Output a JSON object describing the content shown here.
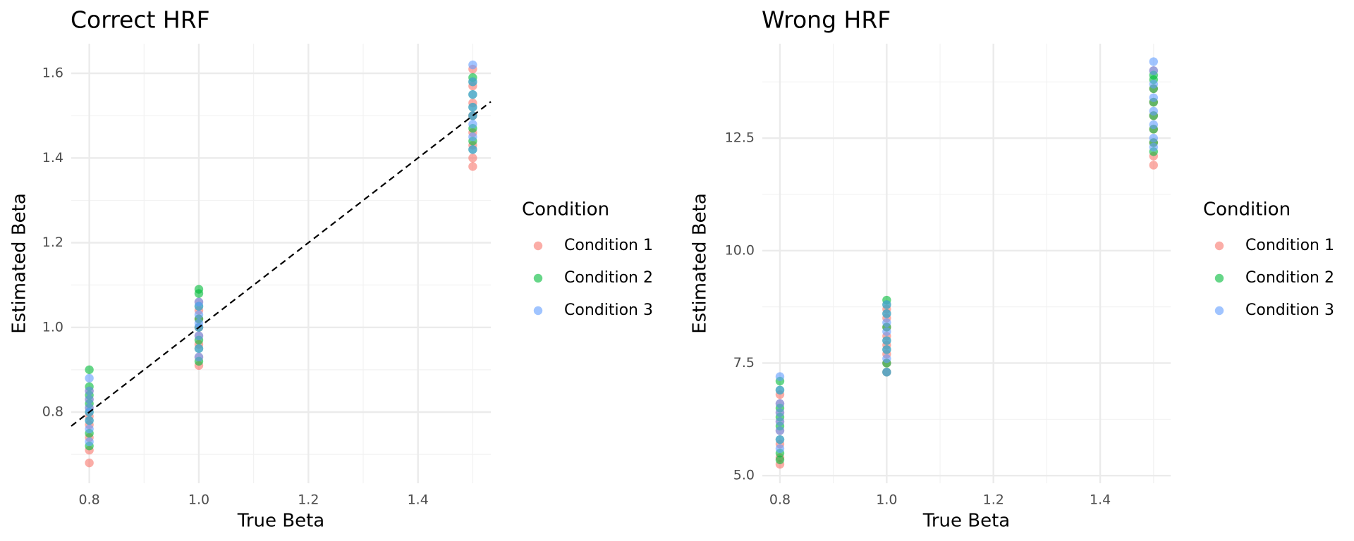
{
  "chart_data": [
    {
      "type": "scatter",
      "title": "Correct HRF",
      "x_label": "True Beta",
      "y_label": "Estimated Beta",
      "legend_title": "Condition",
      "legend": "right",
      "grid": true,
      "identity_line": true,
      "xlim": [
        0.767,
        1.533
      ],
      "ylim": [
        0.632,
        1.67
      ],
      "xticks": [
        0.8,
        {
          "value": 1,
          "label": "1.0"
        },
        1.2,
        1.4
      ],
      "yticks": [
        0.8,
        {
          "value": 1,
          "label": "1.0"
        },
        1.2,
        1.4,
        1.6
      ],
      "series": [
        {
          "name": "Condition 1",
          "color": "#F8766D",
          "x": [
            0.8,
            0.8,
            0.8,
            0.8,
            0.8,
            0.8,
            0.8,
            0.8,
            1,
            1,
            1,
            1,
            1,
            1,
            1,
            1,
            1.5,
            1.5,
            1.5,
            1.5,
            1.5,
            1.5,
            1.5,
            1.5
          ],
          "values": [
            0.68,
            0.71,
            0.74,
            0.77,
            0.79,
            0.81,
            0.83,
            0.85,
            0.91,
            0.93,
            0.96,
            0.98,
            1.0,
            1.02,
            1.04,
            1.06,
            1.38,
            1.4,
            1.43,
            1.46,
            1.5,
            1.53,
            1.57,
            1.61
          ]
        },
        {
          "name": "Condition 2",
          "color": "#00BA38",
          "x": [
            0.8,
            0.8,
            0.8,
            0.8,
            0.8,
            0.8,
            0.8,
            0.8,
            1,
            1,
            1,
            1,
            1,
            1,
            1,
            1,
            1.5,
            1.5,
            1.5,
            1.5,
            1.5,
            1.5,
            1.5,
            1.5
          ],
          "values": [
            0.72,
            0.75,
            0.78,
            0.8,
            0.82,
            0.84,
            0.86,
            0.9,
            0.92,
            0.95,
            0.97,
            1.0,
            1.02,
            1.05,
            1.08,
            1.09,
            1.42,
            1.44,
            1.47,
            1.5,
            1.52,
            1.55,
            1.58,
            1.59
          ]
        },
        {
          "name": "Condition 3",
          "color": "#619CFF",
          "x": [
            0.8,
            0.8,
            0.8,
            0.8,
            0.8,
            0.8,
            0.8,
            0.8,
            1,
            1,
            1,
            1,
            1,
            1,
            1,
            1,
            1.5,
            1.5,
            1.5,
            1.5,
            1.5,
            1.5,
            1.5,
            1.5
          ],
          "values": [
            0.73,
            0.76,
            0.78,
            0.8,
            0.81,
            0.83,
            0.85,
            0.88,
            0.93,
            0.95,
            0.98,
            1.0,
            1.01,
            1.03,
            1.05,
            1.06,
            1.42,
            1.45,
            1.48,
            1.5,
            1.52,
            1.55,
            1.58,
            1.62
          ]
        }
      ]
    },
    {
      "type": "scatter",
      "title": "Wrong HRF",
      "x_label": "True Beta",
      "y_label": "Estimated Beta",
      "legend_title": "Condition",
      "legend": "right",
      "grid": true,
      "identity_line": false,
      "xlim": [
        0.767,
        1.532
      ],
      "ylim": [
        4.83,
        14.6
      ],
      "xticks": [
        0.8,
        {
          "value": 1,
          "label": "1.0"
        },
        1.2,
        1.4
      ],
      "yticks": [
        {
          "value": 5,
          "label": "5.0"
        },
        7.5,
        {
          "value": 10,
          "label": "10.0"
        },
        12.5
      ],
      "series": [
        {
          "name": "Condition 1",
          "color": "#F8766D",
          "x": [
            0.8,
            0.8,
            0.8,
            0.8,
            0.8,
            0.8,
            0.8,
            0.8,
            1,
            1,
            1,
            1,
            1,
            1,
            1,
            1,
            1.5,
            1.5,
            1.5,
            1.5,
            1.5,
            1.5,
            1.5,
            1.5
          ],
          "values": [
            5.25,
            5.4,
            5.7,
            6.0,
            6.2,
            6.4,
            6.6,
            6.8,
            7.3,
            7.5,
            7.7,
            7.9,
            8.1,
            8.3,
            8.5,
            8.7,
            11.9,
            12.1,
            12.4,
            12.7,
            13.0,
            13.3,
            13.6,
            14.0
          ]
        },
        {
          "name": "Condition 2",
          "color": "#00BA38",
          "x": [
            0.8,
            0.8,
            0.8,
            0.8,
            0.8,
            0.8,
            0.8,
            0.8,
            1,
            1,
            1,
            1,
            1,
            1,
            1,
            1,
            1.5,
            1.5,
            1.5,
            1.5,
            1.5,
            1.5,
            1.5,
            1.5
          ],
          "values": [
            5.35,
            5.5,
            5.8,
            6.1,
            6.3,
            6.5,
            6.9,
            7.1,
            7.3,
            7.5,
            7.8,
            8.0,
            8.3,
            8.6,
            8.8,
            8.9,
            12.2,
            12.4,
            12.7,
            13.0,
            13.3,
            13.6,
            13.8,
            13.9
          ]
        },
        {
          "name": "Condition 3",
          "color": "#619CFF",
          "x": [
            0.8,
            0.8,
            0.8,
            0.8,
            0.8,
            0.8,
            0.8,
            0.8,
            1,
            1,
            1,
            1,
            1,
            1,
            1,
            1,
            1.5,
            1.5,
            1.5,
            1.5,
            1.5,
            1.5,
            1.5,
            1.5
          ],
          "values": [
            5.6,
            5.8,
            6.0,
            6.2,
            6.4,
            6.6,
            6.9,
            7.2,
            7.3,
            7.6,
            7.8,
            8.0,
            8.2,
            8.4,
            8.6,
            8.8,
            12.3,
            12.5,
            12.8,
            13.1,
            13.4,
            13.7,
            14.0,
            14.2
          ]
        }
      ]
    }
  ]
}
